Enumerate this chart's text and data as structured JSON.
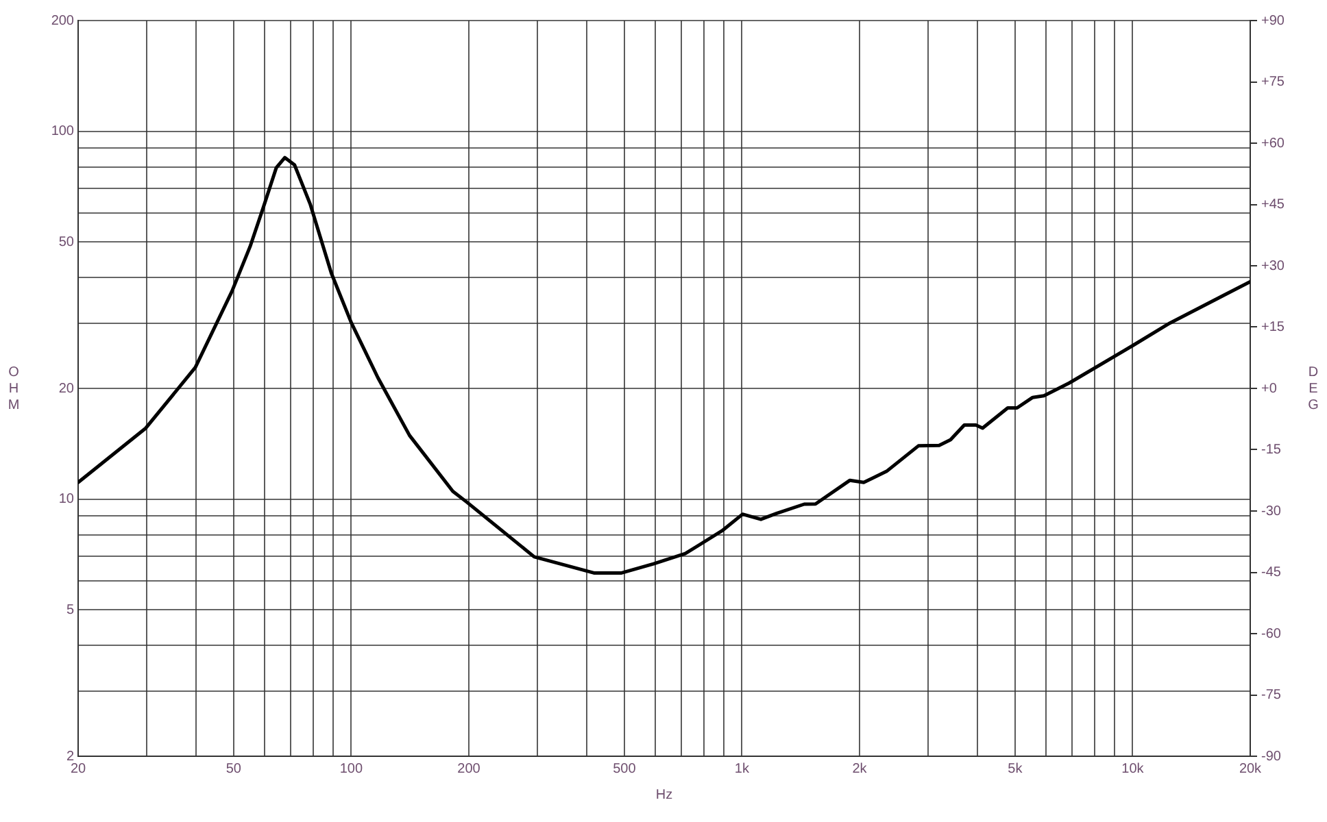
{
  "chart_data": {
    "type": "line",
    "xlabel": "Hz",
    "ylabel": "OHM",
    "y2label": "DEG",
    "log": "xy",
    "grid": true,
    "legend": false,
    "marker": "none",
    "line_style": "solid",
    "xlim": [
      20,
      20000
    ],
    "ylim": [
      2,
      200
    ],
    "y2lim": [
      -90,
      90
    ],
    "xticks": [
      20,
      {
        "value": 30,
        "label": null
      },
      {
        "value": 40,
        "label": null
      },
      50,
      {
        "value": 60,
        "label": null
      },
      {
        "value": 70,
        "label": null
      },
      {
        "value": 80,
        "label": null
      },
      {
        "value": 90,
        "label": null
      },
      100,
      200,
      {
        "value": 300,
        "label": null
      },
      {
        "value": 400,
        "label": null
      },
      500,
      {
        "value": 600,
        "label": null
      },
      {
        "value": 700,
        "label": null
      },
      {
        "value": 800,
        "label": null
      },
      {
        "value": 900,
        "label": null
      },
      {
        "value": 1000,
        "label": "1k"
      },
      {
        "value": 2000,
        "label": "2k"
      },
      {
        "value": 3000,
        "label": null
      },
      {
        "value": 4000,
        "label": null
      },
      {
        "value": 5000,
        "label": "5k"
      },
      {
        "value": 6000,
        "label": null
      },
      {
        "value": 7000,
        "label": null
      },
      {
        "value": 8000,
        "label": null
      },
      {
        "value": 9000,
        "label": null
      },
      {
        "value": 10000,
        "label": "10k"
      },
      {
        "value": 20000,
        "label": "20k"
      }
    ],
    "yticks": [
      2,
      {
        "value": 3,
        "label": null
      },
      {
        "value": 4,
        "label": null
      },
      5,
      {
        "value": 6,
        "label": null
      },
      {
        "value": 7,
        "label": null
      },
      {
        "value": 8,
        "label": null
      },
      {
        "value": 9,
        "label": null
      },
      10,
      20,
      {
        "value": 30,
        "label": null
      },
      {
        "value": 40,
        "label": null
      },
      50,
      {
        "value": 60,
        "label": null
      },
      {
        "value": 70,
        "label": null
      },
      {
        "value": 80,
        "label": null
      },
      {
        "value": 90,
        "label": null
      },
      100,
      200
    ],
    "y2ticks": [
      -90,
      -75,
      -60,
      -45,
      -30,
      -15,
      {
        "value": 0,
        "label": "+0"
      },
      {
        "value": 15,
        "label": "+15"
      },
      {
        "value": 30,
        "label": "+30"
      },
      {
        "value": 45,
        "label": "+45"
      },
      {
        "value": 60,
        "label": "+60"
      },
      {
        "value": 75,
        "label": "+75"
      },
      {
        "value": 90,
        "label": "+90"
      }
    ],
    "series": [
      {
        "color": "#000000",
        "x": [
          20,
          29.8,
          39.9,
          49.5,
          55.1,
          59.6,
          64.3,
          67.6,
          71.6,
          78.6,
          88.9,
          100,
          117,
          141,
          182,
          198,
          294,
          418,
          492,
          594,
          716,
          889,
          1004,
          1118,
          1228,
          1444,
          1543,
          1890,
          2050,
          2345,
          2830,
          3197,
          3419,
          3708,
          3970,
          4130,
          4790,
          5060,
          5550,
          5930,
          6890,
          10040,
          12450,
          20000
        ],
        "values": [
          11.1,
          15.6,
          22.8,
          36.7,
          48.6,
          62.2,
          79.6,
          84.8,
          81,
          63.2,
          41.2,
          30.2,
          21.4,
          14.9,
          10.5,
          9.8,
          6.97,
          6.3,
          6.3,
          6.67,
          7.11,
          8.2,
          9.1,
          8.81,
          9.15,
          9.69,
          9.7,
          11.25,
          11.1,
          11.9,
          13.96,
          14,
          14.5,
          15.9,
          15.9,
          15.6,
          17.7,
          17.7,
          18.9,
          19.1,
          20.7,
          26.2,
          30.1,
          39
        ]
      }
    ]
  }
}
